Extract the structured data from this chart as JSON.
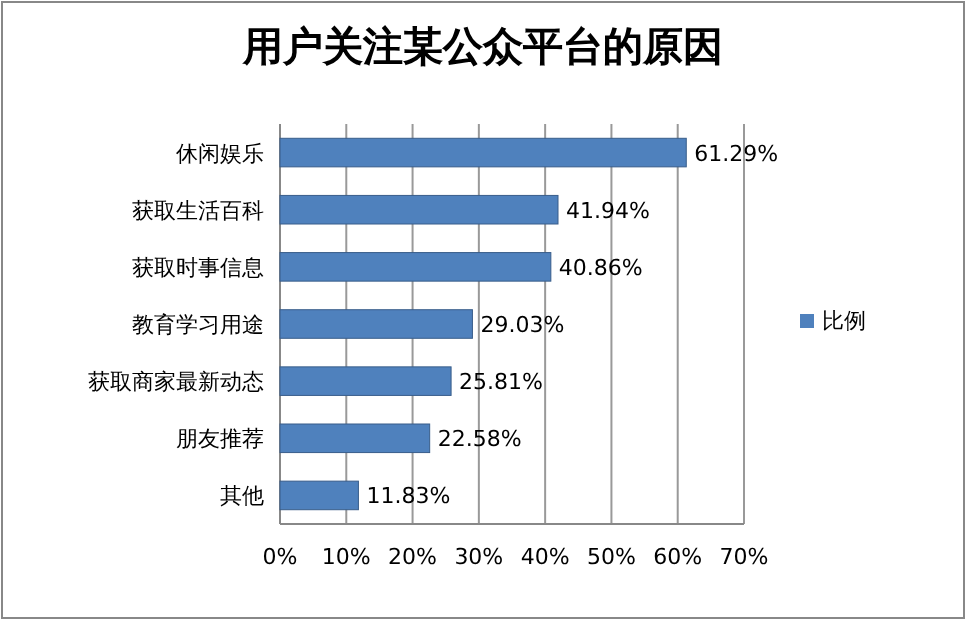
{
  "chart_data": {
    "type": "bar",
    "orientation": "horizontal",
    "title": "用户关注某公众平台的原因",
    "categories": [
      "休闲娱乐",
      "获取生活百科",
      "获取时事信息",
      "教育学习用途",
      "获取商家最新动态",
      "朋友推荐",
      "其他"
    ],
    "series": [
      {
        "name": "比例",
        "color": "#4f81bd",
        "values": [
          61.29,
          41.94,
          40.86,
          29.03,
          25.81,
          22.58,
          11.83
        ],
        "value_labels": [
          "61.29%",
          "41.94%",
          "40.86%",
          "29.03%",
          "25.81%",
          "22.58%",
          "11.83%"
        ]
      }
    ],
    "xlim": [
      0,
      70
    ],
    "xticks": [
      {
        "value": 0,
        "label": "0%"
      },
      {
        "value": 10,
        "label": "10%"
      },
      {
        "value": 20,
        "label": "20%"
      },
      {
        "value": 30,
        "label": "30%"
      },
      {
        "value": 40,
        "label": "40%"
      },
      {
        "value": 50,
        "label": "50%"
      },
      {
        "value": 60,
        "label": "60%"
      },
      {
        "value": 70,
        "label": "70%"
      }
    ],
    "grid": "x",
    "legend": "right"
  }
}
